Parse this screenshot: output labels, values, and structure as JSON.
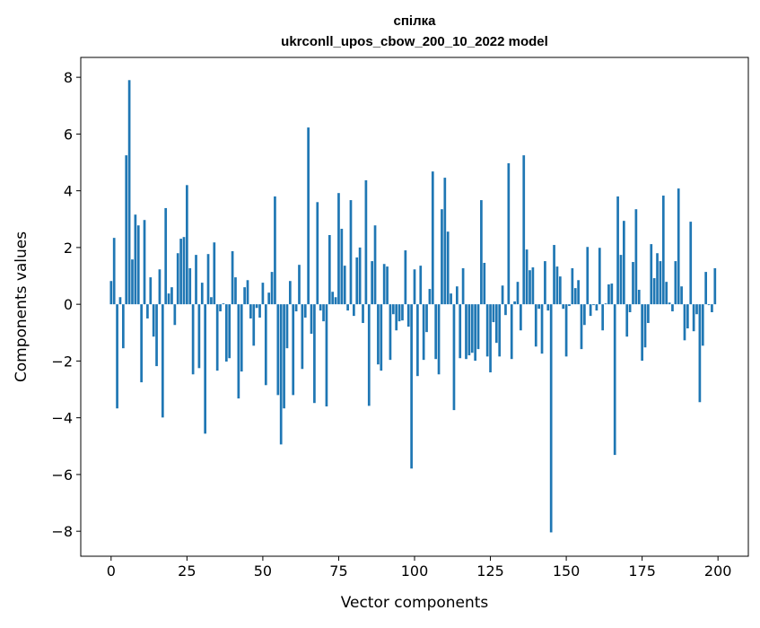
{
  "chart_data": {
    "type": "bar",
    "title": [
      "спілка",
      "ukrconll_upos_cbow_200_10_2022 model"
    ],
    "xlabel": "Vector components",
    "ylabel": "Components values",
    "xlim": [
      -10,
      210
    ],
    "ylim": [
      -8.88,
      8.7
    ],
    "xticks": [
      0,
      25,
      50,
      75,
      100,
      125,
      150,
      175,
      200
    ],
    "yticks": [
      -8,
      -6,
      -4,
      -2,
      0,
      2,
      4,
      6,
      8
    ],
    "ytick_labels": [
      "−8",
      "−6",
      "−4",
      "−2",
      "0",
      "2",
      "4",
      "6",
      "8"
    ],
    "grid": false,
    "color": "#1f77b4",
    "values": [
      0.82,
      2.34,
      -3.67,
      0.25,
      -1.55,
      5.25,
      7.9,
      1.58,
      3.16,
      2.78,
      -2.75,
      2.97,
      -0.5,
      0.95,
      -1.14,
      -2.18,
      1.23,
      -3.99,
      3.39,
      0.38,
      0.6,
      -0.73,
      1.8,
      2.31,
      2.37,
      4.2,
      1.27,
      -2.47,
      1.74,
      -2.25,
      0.76,
      -4.56,
      1.77,
      0.25,
      2.18,
      -2.34,
      -0.25,
      0.03,
      -2.02,
      -1.9,
      1.87,
      0.95,
      -3.32,
      -2.37,
      0.6,
      0.85,
      -0.5,
      -1.46,
      -0.13,
      -0.47,
      0.76,
      -2.85,
      0.41,
      1.14,
      3.8,
      -3.2,
      -4.94,
      -3.67,
      -1.55,
      0.82,
      -3.2,
      -0.25,
      1.39,
      -2.28,
      -0.47,
      6.23,
      -1.04,
      -3.48,
      3.6,
      -0.22,
      -0.6,
      -3.6,
      2.44,
      0.44,
      0.25,
      3.92,
      2.66,
      1.36,
      -0.22,
      3.67,
      -0.41,
      1.65,
      2.0,
      -0.66,
      4.37,
      -3.58,
      1.52,
      2.78,
      -2.12,
      -2.34,
      1.42,
      1.33,
      -1.96,
      -0.35,
      -0.92,
      -0.6,
      -0.57,
      1.9,
      -0.79,
      -5.79,
      1.23,
      -2.53,
      1.36,
      -1.96,
      -0.98,
      0.54,
      4.68,
      -1.93,
      -2.47,
      3.35,
      4.46,
      2.56,
      0.38,
      -3.73,
      0.63,
      -1.9,
      1.27,
      -1.93,
      -1.8,
      -1.71,
      -1.99,
      -1.58,
      3.67,
      1.46,
      -1.84,
      -2.4,
      -0.63,
      -1.36,
      -1.84,
      0.66,
      -0.38,
      4.97,
      -1.93,
      0.1,
      0.79,
      -0.92,
      5.25,
      1.93,
      1.2,
      1.3,
      -1.49,
      -0.16,
      -1.74,
      1.52,
      -0.22,
      -8.04,
      2.09,
      1.33,
      0.98,
      -0.16,
      -1.84,
      -0.06,
      1.27,
      0.57,
      0.85,
      -1.58,
      -0.73,
      2.02,
      -0.41,
      -0.03,
      -0.22,
      1.99,
      -0.92,
      0.03,
      0.7,
      0.73,
      -5.31,
      3.8,
      1.74,
      2.94,
      -1.14,
      -0.28,
      1.49,
      3.35,
      0.51,
      -1.99,
      -1.52,
      -0.66,
      2.12,
      0.92,
      1.8,
      1.52,
      3.83,
      0.79,
      0.06,
      -0.25,
      1.52,
      4.08,
      0.63,
      -1.27,
      -0.85,
      2.91,
      -0.95,
      -0.35,
      -3.45,
      -1.46,
      1.14,
      -0.03,
      -0.28,
      1.27
    ]
  }
}
